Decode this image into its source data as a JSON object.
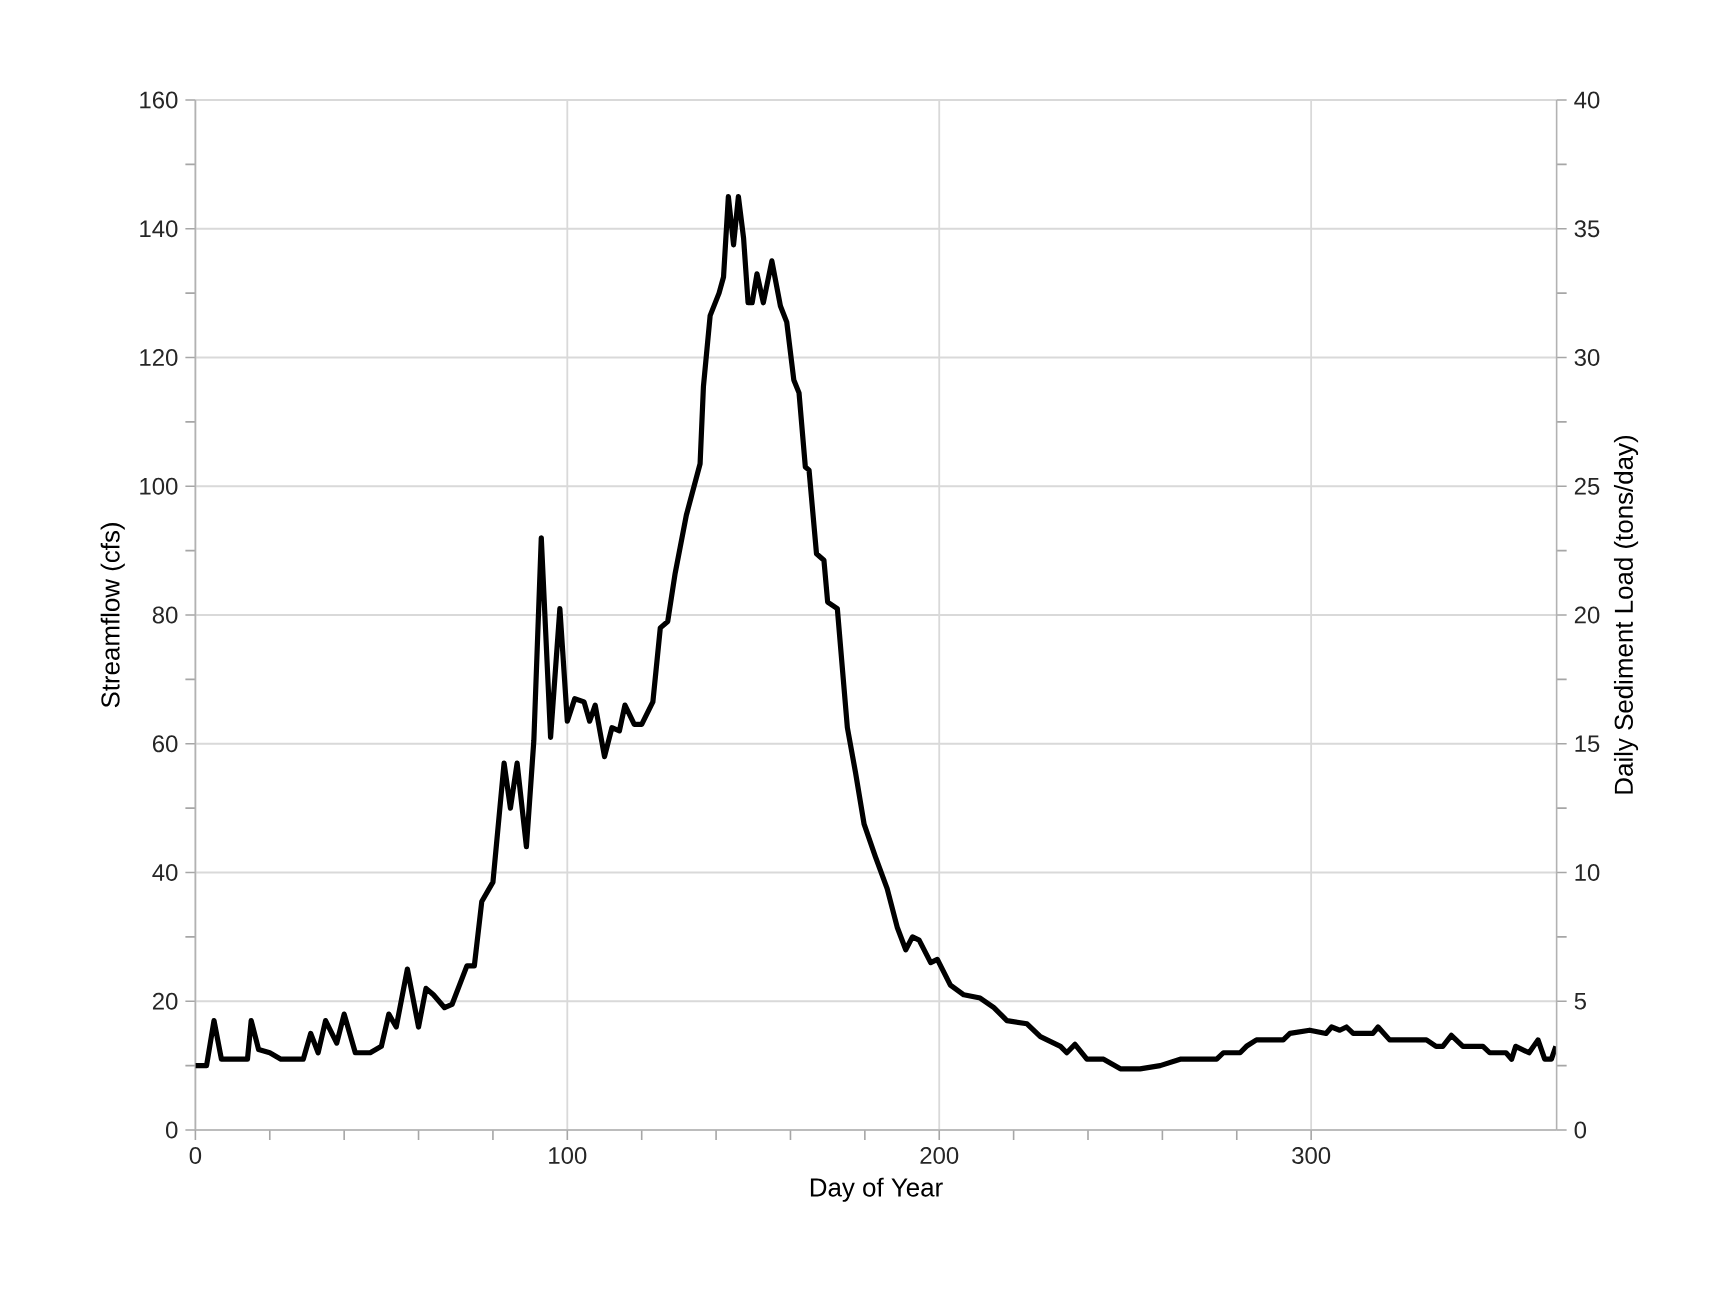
{
  "chart_data": {
    "type": "line",
    "xlabel": "Day of Year",
    "ylabel": "Streamflow (cfs)",
    "y2label": "Daily Sediment Load (tons/day)",
    "xlim": [
      0,
      366
    ],
    "xticks": [
      0,
      100,
      200,
      300
    ],
    "ylim": [
      0,
      160
    ],
    "yticks": [
      0,
      20,
      40,
      60,
      80,
      100,
      120,
      140,
      160
    ],
    "y2lim": [
      0,
      40
    ],
    "y2ticks": [
      0,
      5,
      10,
      15,
      20,
      25,
      30,
      35,
      40
    ],
    "grid": true,
    "legend": false,
    "marker": "none",
    "line_style": "solid",
    "series": [
      {
        "color": "#000000",
        "x": [
          0,
          3,
          5,
          7,
          14,
          15,
          17,
          20,
          23,
          29,
          31,
          33,
          35,
          38,
          40,
          43,
          47,
          50,
          52,
          54,
          57,
          60,
          62,
          64,
          67,
          69,
          73,
          75,
          77,
          80,
          83,
          84.7,
          86.5,
          89,
          91,
          93,
          95.5,
          98,
          100,
          102,
          104.5,
          106,
          107.5,
          110,
          112,
          114,
          115.5,
          118,
          120,
          123,
          125,
          127,
          129,
          132,
          135.7,
          136.6,
          138.4,
          140.8,
          142,
          143.3,
          144.7,
          146,
          147.4,
          148.6,
          149.7,
          151,
          152.7,
          155,
          157.3,
          159,
          160.9,
          162.3,
          164,
          165,
          167,
          169,
          170,
          172.6,
          175.3,
          177.5,
          179.8,
          182.8,
          186,
          188.7,
          191,
          192.8,
          194.6,
          197.7,
          199.5,
          203,
          206.6,
          211,
          214.7,
          218.2,
          223.6,
          227.2,
          232.6,
          234.3,
          236.5,
          239.7,
          244.2,
          248.7,
          254,
          259.4,
          264.8,
          274.6,
          276.4,
          280.9,
          282.6,
          285.3,
          292.5,
          294.3,
          299.6,
          304,
          305.5,
          307.7,
          309.5,
          311.3,
          316.6,
          318,
          321.1,
          331,
          333.6,
          335.4,
          337.7,
          340.8,
          346.2,
          348,
          352.4,
          353.9,
          355,
          358.6,
          361,
          362.8,
          364.6,
          365.8
        ],
        "values": [
          10,
          10,
          17,
          11,
          11,
          17,
          12.5,
          12,
          11,
          11,
          15,
          12,
          17,
          13.5,
          18,
          12,
          12,
          13,
          18,
          16,
          25,
          16,
          22,
          21,
          19,
          19.5,
          25.5,
          25.5,
          35.5,
          38.5,
          57,
          50,
          57,
          44,
          60.5,
          92,
          61,
          81,
          63.5,
          67,
          66.5,
          63.5,
          66,
          58,
          62.5,
          62,
          66,
          63,
          63,
          66.5,
          78,
          79,
          86.5,
          95.5,
          103.5,
          115.5,
          126.5,
          130,
          132.5,
          145,
          137.5,
          145,
          138.5,
          128.5,
          128.5,
          133,
          128.5,
          135,
          128,
          125.5,
          116.5,
          114.5,
          103,
          102.5,
          89.5,
          88.5,
          82,
          81,
          62.5,
          55.5,
          47.5,
          42.5,
          37.5,
          31.5,
          28,
          30,
          29.5,
          26,
          26.5,
          22.5,
          21,
          20.5,
          19,
          17,
          16.5,
          14.5,
          13,
          12,
          13.3,
          11,
          11,
          9.5,
          9.5,
          10,
          11,
          11,
          12,
          12,
          13,
          14,
          14,
          15,
          15.5,
          15,
          16,
          15.5,
          16,
          15,
          15,
          16,
          14,
          14,
          13,
          13,
          14.7,
          13,
          13,
          12,
          12,
          11,
          13,
          12,
          14,
          11,
          11,
          13
        ]
      }
    ]
  }
}
